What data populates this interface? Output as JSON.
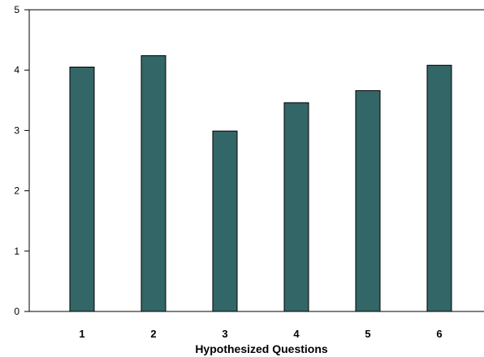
{
  "chart_data": {
    "type": "bar",
    "title": "",
    "xlabel": "Hypothesized Questions",
    "ylabel": "",
    "categories": [
      "1",
      "2",
      "3",
      "4",
      "5",
      "6"
    ],
    "values": [
      4.05,
      4.24,
      2.99,
      3.46,
      3.66,
      4.08
    ],
    "ylim": [
      0,
      5
    ],
    "yticks": [
      "0",
      "1",
      "2",
      "3",
      "4",
      "5"
    ],
    "grid": false,
    "legend": "none",
    "colors": {
      "bar_fill": "#336666",
      "bar_stroke": "#000000",
      "axis": "#000000",
      "background": "#ffffff"
    }
  }
}
